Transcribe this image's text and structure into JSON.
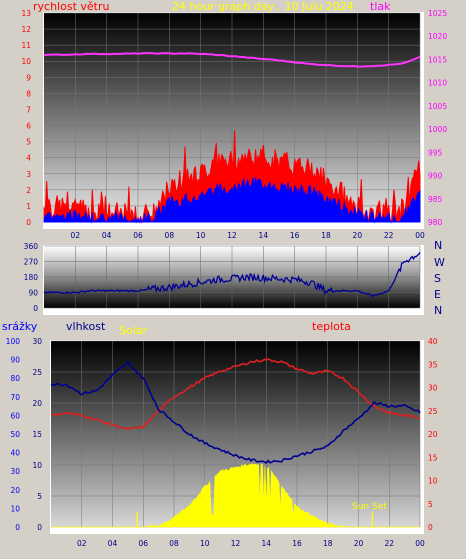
{
  "header": {
    "title": "24 hour graph day . 10 Julu 2024",
    "left_label": "rychlost větru",
    "right_label": "tlak"
  },
  "lower_header": {
    "rain_label": "srážky",
    "humidity_label": "vlhkost",
    "solar_label": "Solar",
    "temp_label": "teplota"
  },
  "direction_labels": [
    "N",
    "W",
    "S",
    "E",
    "N"
  ],
  "sunset_label": "Sun Set",
  "colors": {
    "wind_gust": "#ff0000",
    "wind_avg": "#0000ff",
    "pressure": "#ff33ff",
    "humidity": "#000090",
    "temperature": "#e02020",
    "solar": "#ffff00",
    "rain_axis": "#0000ff",
    "temp_axis": "#ff0000",
    "pressure_axis": "#ff00ff"
  },
  "chart_data": [
    {
      "type": "line",
      "name": "wind-pressure",
      "title": "24 hour graph day . 10 Julu 2024",
      "x_ticks": [
        "02",
        "04",
        "06",
        "08",
        "10",
        "12",
        "14",
        "16",
        "18",
        "20",
        "22",
        "00"
      ],
      "ylim_left": [
        0,
        13
      ],
      "yticks_left": [
        0,
        1,
        2,
        3,
        4,
        5,
        6,
        7,
        8,
        9,
        10,
        11,
        12,
        13
      ],
      "ylim_right": [
        980,
        1025
      ],
      "yticks_right": [
        980,
        985,
        990,
        995,
        1000,
        1005,
        1010,
        1015,
        1020,
        1025
      ],
      "x_hours": [
        0,
        1,
        2,
        3,
        4,
        5,
        6,
        7,
        8,
        9,
        10,
        11,
        12,
        13,
        14,
        15,
        16,
        17,
        18,
        19,
        20,
        21,
        22,
        23,
        24
      ],
      "series": [
        {
          "values": [
            0.8,
            1.0,
            0.8,
            0.6,
            0.6,
            0.5,
            0.4,
            0.5,
            2.2,
            2.5,
            3.0,
            3.6,
            3.8,
            4.0,
            4.1,
            3.8,
            3.5,
            3.3,
            2.5,
            1.8,
            0.9,
            0.6,
            0.5,
            0.8,
            3.5
          ]
        },
        {
          "values": [
            0.4,
            0.5,
            0.4,
            0.3,
            0.3,
            0.3,
            0.2,
            0.3,
            1.2,
            1.4,
            1.7,
            2.0,
            2.2,
            2.4,
            2.4,
            2.2,
            2.0,
            1.9,
            1.4,
            1.0,
            0.5,
            0.3,
            0.3,
            0.4,
            2.0
          ]
        },
        {
          "values": [
            1016.0,
            1016.0,
            1016.1,
            1016.2,
            1016.2,
            1016.2,
            1016.3,
            1016.3,
            1016.3,
            1016.3,
            1016.2,
            1016.0,
            1015.7,
            1015.4,
            1015.1,
            1014.8,
            1014.4,
            1014.0,
            1013.8,
            1013.6,
            1013.5,
            1013.6,
            1013.8,
            1014.2,
            1015.5
          ]
        }
      ]
    },
    {
      "type": "line",
      "name": "wind-direction",
      "ylim": [
        0,
        360
      ],
      "yticks": [
        0,
        90,
        180,
        270,
        360
      ],
      "x_hours": [
        0,
        1,
        2,
        3,
        4,
        5,
        6,
        7,
        8,
        9,
        10,
        11,
        12,
        13,
        14,
        15,
        16,
        17,
        18,
        19,
        20,
        21,
        22,
        23,
        24
      ],
      "series": [
        {
          "values": [
            90,
            90,
            90,
            100,
            100,
            100,
            100,
            110,
            120,
            135,
            150,
            165,
            170,
            180,
            175,
            170,
            165,
            150,
            100,
            100,
            100,
            70,
            100,
            270,
            320
          ]
        }
      ]
    },
    {
      "type": "line",
      "name": "humidity-temperature",
      "x_ticks": [
        "02",
        "04",
        "06",
        "08",
        "10",
        "12",
        "14",
        "16",
        "18",
        "20",
        "22",
        "00"
      ],
      "ylim_rain": [
        0,
        100
      ],
      "yticks_rain": [
        0,
        10,
        20,
        30,
        40,
        50,
        60,
        70,
        80,
        90,
        100
      ],
      "ylim_humidity": [
        0,
        30
      ],
      "yticks_humidity": [
        0,
        5,
        10,
        15,
        20,
        25,
        30
      ],
      "ylim_temp": [
        0,
        40
      ],
      "yticks_temp": [
        0,
        5,
        10,
        15,
        20,
        25,
        30,
        35,
        40
      ],
      "x_hours": [
        0,
        1,
        2,
        3,
        4,
        5,
        6,
        7,
        8,
        9,
        10,
        11,
        12,
        13,
        14,
        15,
        16,
        17,
        18,
        19,
        20,
        21,
        22,
        23,
        24
      ],
      "series": [
        {
          "values": [
            23.0,
            23.0,
            21.5,
            22.0,
            24.5,
            26.5,
            24.0,
            19.0,
            17.0,
            15.0,
            13.5,
            12.5,
            11.5,
            10.8,
            10.5,
            10.7,
            11.5,
            12.2,
            13.0,
            15.5,
            17.5,
            20.0,
            19.5,
            19.5,
            18.5
          ]
        },
        {
          "values": [
            24.0,
            24.5,
            24.0,
            23.0,
            22.0,
            21.0,
            21.5,
            25.0,
            28.0,
            30.0,
            32.0,
            33.5,
            34.5,
            35.5,
            36.0,
            35.5,
            34.0,
            33.0,
            33.5,
            32.0,
            29.0,
            26.0,
            24.5,
            24.0,
            23.5
          ]
        },
        {
          "values": [
            0,
            0,
            0,
            0,
            0,
            0,
            0,
            0.2,
            1.5,
            3.5,
            6.5,
            9.0,
            9.6,
            10.2,
            10.0,
            6.5,
            3.2,
            1.8,
            0.5,
            0.1,
            0,
            0,
            0,
            0,
            0
          ]
        }
      ]
    }
  ]
}
